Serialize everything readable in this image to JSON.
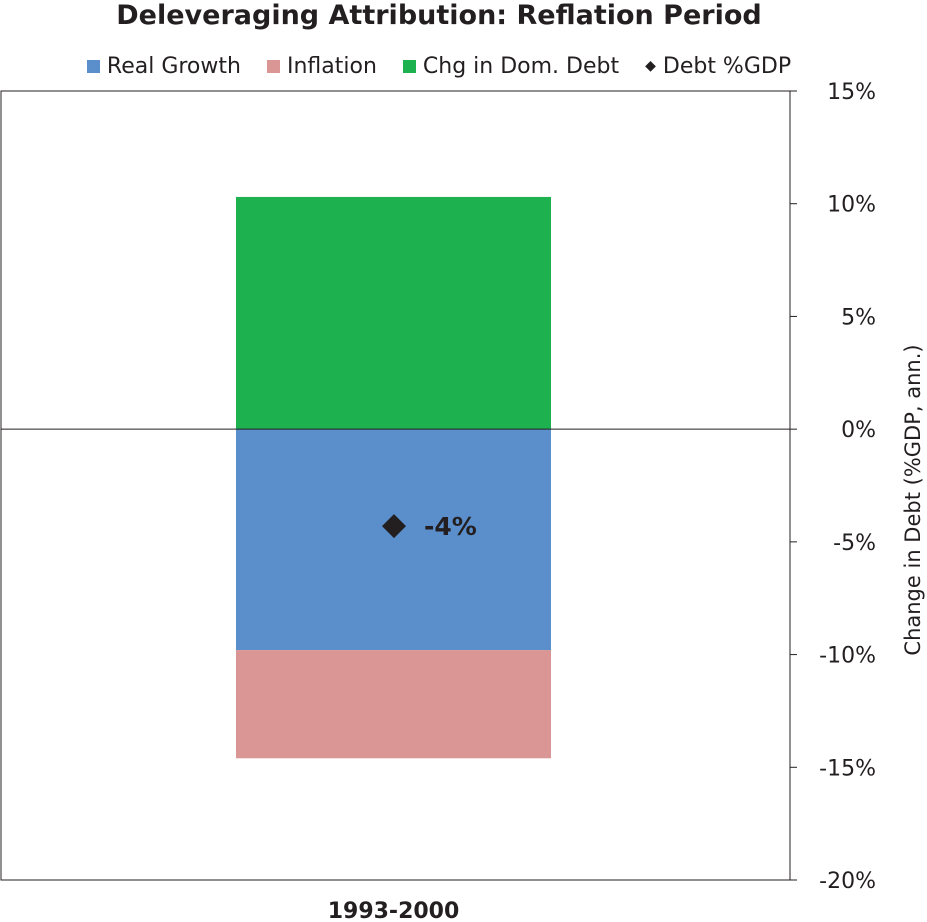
{
  "chart_data": {
    "type": "bar",
    "stacked": true,
    "title": "Deleveraging Attribution: Reflation Period",
    "categories": [
      "1993-2000"
    ],
    "series": [
      {
        "name": "Real Growth",
        "type": "bar",
        "color": "#5b8fcb",
        "values": [
          -9.8
        ]
      },
      {
        "name": "Inflation",
        "type": "bar",
        "color": "#d99694",
        "values": [
          -4.8
        ]
      },
      {
        "name": "Chg in Dom. Debt",
        "type": "bar",
        "color": "#1db14f",
        "values": [
          10.3
        ]
      },
      {
        "name": "Debt %GDP",
        "type": "marker",
        "marker": "diamond",
        "color": "#231f20",
        "values": [
          -4.3
        ],
        "label": "-4%"
      }
    ],
    "xlabel": "",
    "ylabel": "Change in Debt (%GDP, ann.)",
    "ylim": [
      -20,
      15
    ],
    "yticks": [
      15,
      10,
      5,
      0,
      -5,
      -10,
      -15,
      -20
    ],
    "ytick_labels": [
      "15%",
      "10%",
      "5%",
      "0%",
      "-5%",
      "-10%",
      "-15%",
      "-20%"
    ],
    "y_axis_position": "right",
    "legend_position": "top",
    "grid": false
  }
}
